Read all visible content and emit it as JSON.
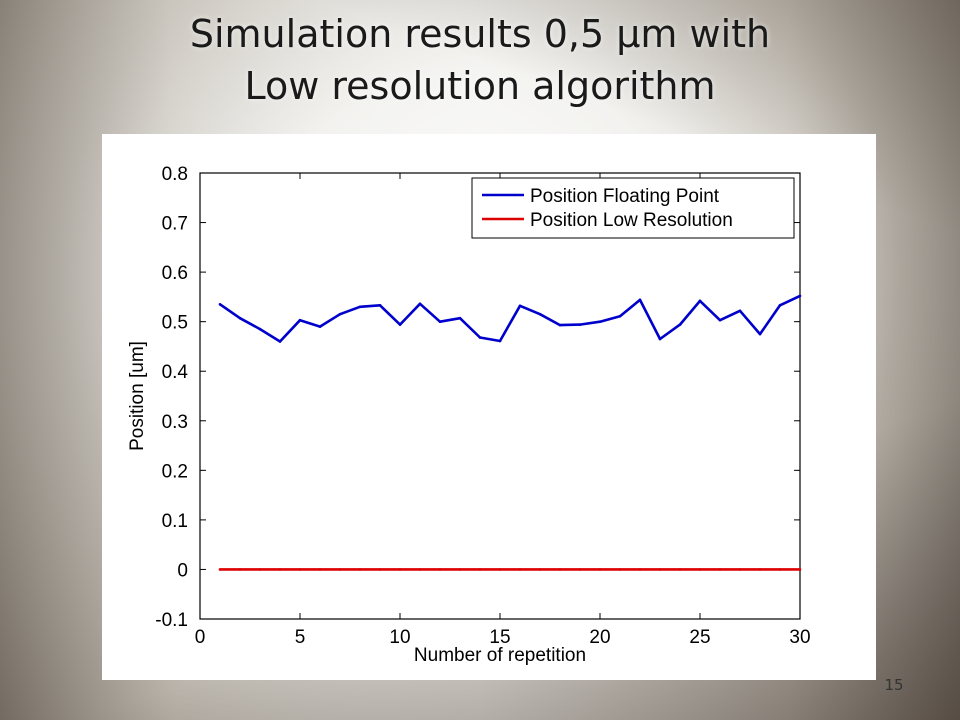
{
  "slide": {
    "title_line1": "Simulation results 0,5 µm with",
    "title_line2": "Low resolution algorithm",
    "page_number": "15"
  },
  "colors": {
    "series_floating": "#0000cc",
    "series_lowres": "#dd0000",
    "axis": "#000000"
  },
  "chart_data": {
    "type": "line",
    "title": "",
    "xlabel": "Number of repetition",
    "ylabel": "Position [um]",
    "xlim": [
      0,
      30
    ],
    "ylim": [
      -0.1,
      0.8
    ],
    "xticks": [
      0,
      5,
      10,
      15,
      20,
      25,
      30
    ],
    "xtick_labels": [
      "0",
      "5",
      "10",
      "15",
      "20",
      "25",
      "30"
    ],
    "yticks": [
      -0.1,
      0,
      0.1,
      0.2,
      0.3,
      0.4,
      0.5,
      0.6,
      0.7,
      0.8
    ],
    "ytick_labels": [
      "-0.1",
      "0",
      "0.1",
      "0.2",
      "0.3",
      "0.4",
      "0.5",
      "0.6",
      "0.7",
      "0.8"
    ],
    "grid": false,
    "legend_position": "top-right",
    "x": [
      1,
      2,
      3,
      4,
      5,
      6,
      7,
      8,
      9,
      10,
      11,
      12,
      13,
      14,
      15,
      16,
      17,
      18,
      19,
      20,
      21,
      22,
      23,
      24,
      25,
      26,
      27,
      28,
      29,
      30
    ],
    "series": [
      {
        "name": "Position Floating Point",
        "color": "#0000cc",
        "values": [
          0.535,
          0.507,
          0.485,
          0.46,
          0.503,
          0.49,
          0.515,
          0.53,
          0.533,
          0.494,
          0.536,
          0.5,
          0.507,
          0.468,
          0.461,
          0.532,
          0.515,
          0.493,
          0.494,
          0.5,
          0.511,
          0.544,
          0.465,
          0.494,
          0.542,
          0.503,
          0.522,
          0.475,
          0.533,
          0.552
        ]
      },
      {
        "name": "Position Low Resolution",
        "color": "#dd0000",
        "values": [
          0,
          0,
          0,
          0,
          0,
          0,
          0,
          0,
          0,
          0,
          0,
          0,
          0,
          0,
          0,
          0,
          0,
          0,
          0,
          0,
          0,
          0,
          0,
          0,
          0,
          0,
          0,
          0,
          0,
          0
        ]
      }
    ]
  }
}
